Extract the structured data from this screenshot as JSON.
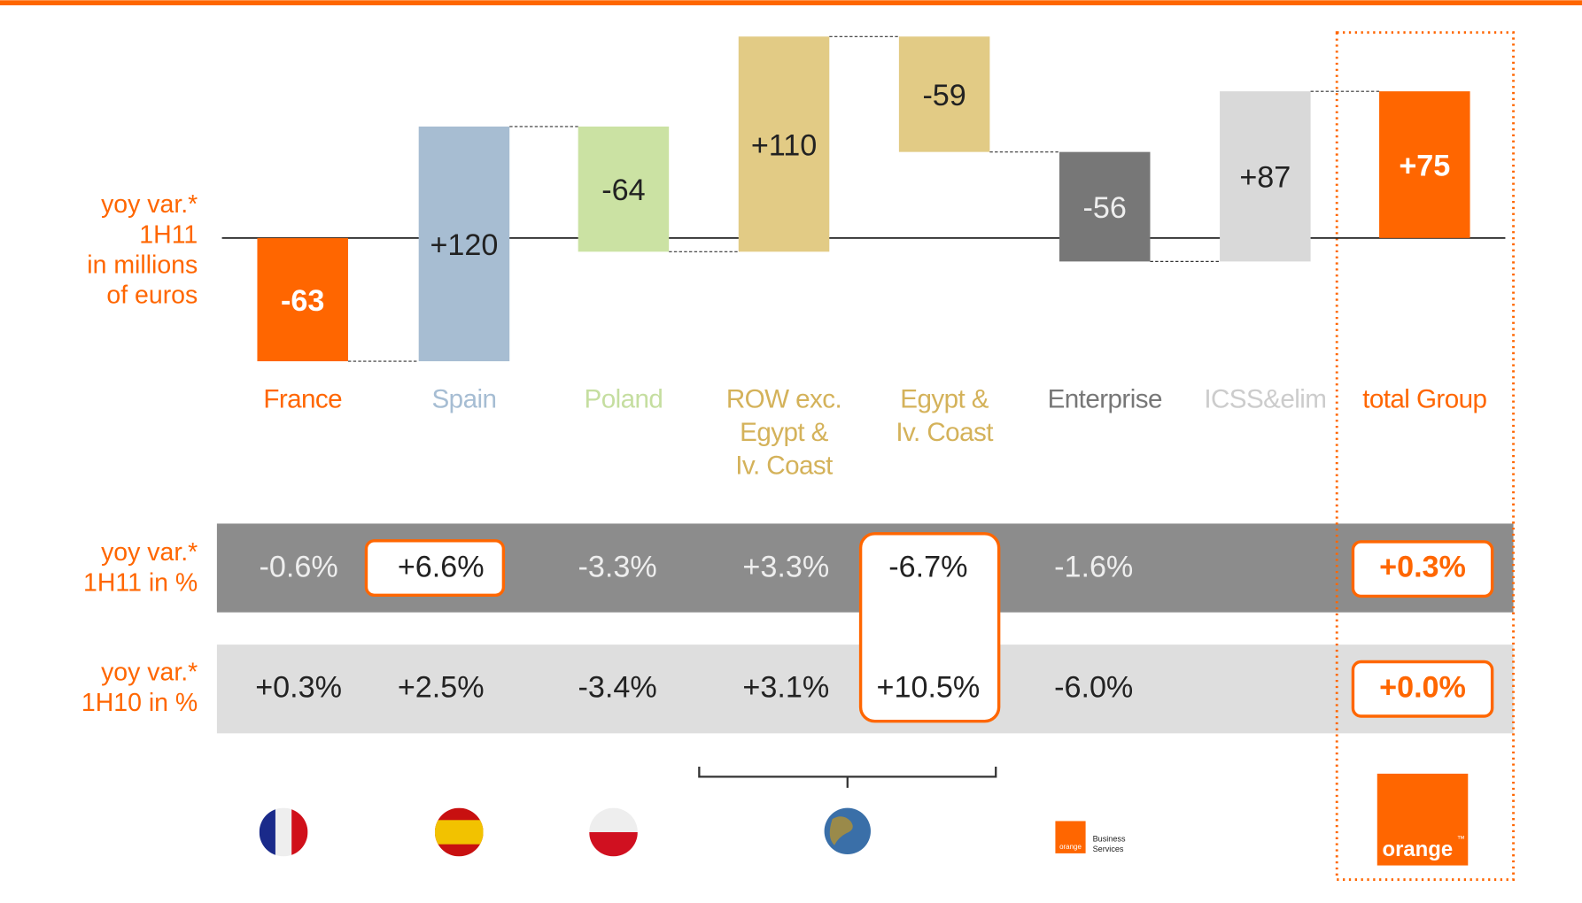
{
  "chart_data": {
    "type": "waterfall",
    "axis_label": [
      "yoy var.*",
      "1H11",
      "in millions",
      "of euros"
    ],
    "categories": [
      "France",
      "Spain",
      "Poland",
      "ROW exc.\nEgypt &\nIv. Coast",
      "Egypt &\nIv. Coast",
      "Enterprise",
      "ICSS&elim",
      "total Group"
    ],
    "values": [
      -63,
      120,
      -64,
      110,
      -59,
      -56,
      87,
      75
    ],
    "value_labels": [
      "-63",
      "+120",
      "-64",
      "+110",
      "-59",
      "-56",
      "+87",
      "+75"
    ],
    "totals": [
      7
    ],
    "colors": [
      "#ff6600",
      "#a7bdd2",
      "#cbe2a3",
      "#e2cb85",
      "#e2cb85",
      "#777777",
      "#d9d9d9",
      "#ff6600"
    ],
    "label_colors": [
      "#ff6600",
      "#a6bdd3",
      "#c5dea0",
      "#d4b25a",
      "#d4b25a",
      "#777777",
      "#cccccc",
      "#ff6600"
    ],
    "value_label_colors": [
      "#ffffff",
      "#222222",
      "#222222",
      "#222222",
      "#222222",
      "#eeeeee",
      "#222222",
      "#ffffff"
    ],
    "table": {
      "rows": [
        {
          "label": [
            "yoy var.*",
            "1H11 in %"
          ],
          "cells": [
            "-0.6%",
            "+6.6%",
            "-3.3%",
            "+3.3%",
            "-6.7%",
            "-1.6%",
            null,
            "+0.3%"
          ]
        },
        {
          "label": [
            "yoy var.*",
            "1H10 in %"
          ],
          "cells": [
            "+0.3%",
            "+2.5%",
            "-3.4%",
            "+3.1%",
            "+10.5%",
            "-6.0%",
            null,
            "+0.0%"
          ]
        }
      ]
    },
    "logos": {
      "business_brand": "orange",
      "business_text": [
        "Business",
        "Services"
      ],
      "orange": "orange",
      "trademark": "™"
    }
  }
}
